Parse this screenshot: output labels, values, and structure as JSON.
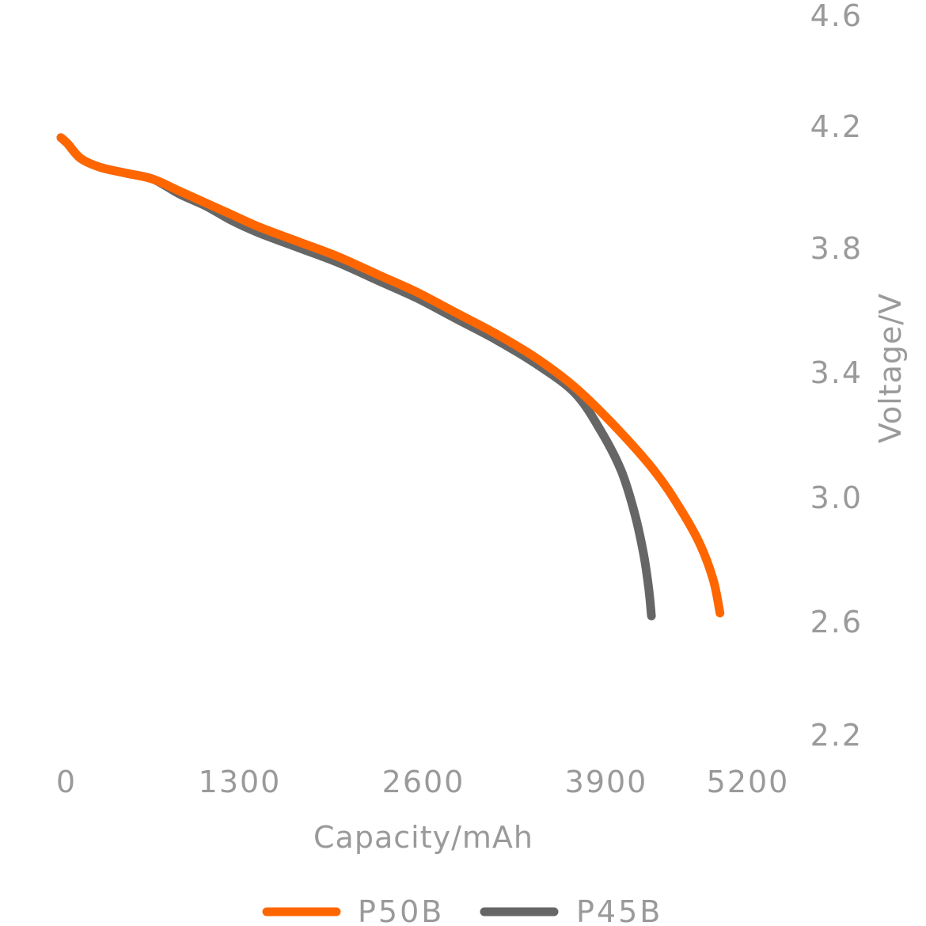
{
  "chart_data": {
    "type": "line",
    "title": "",
    "xlabel": "Capacity/mAh",
    "ylabel": "Voltage/V",
    "xlim": [
      0,
      5200
    ],
    "ylim": [
      2.2,
      4.6
    ],
    "x_ticks": [
      "0",
      "1300",
      "2600",
      "3900",
      "5200"
    ],
    "y_ticks": [
      "4.6",
      "4.2",
      "3.8",
      "3.4",
      "3.0",
      "2.6",
      "2.2"
    ],
    "y_axis_side": "right",
    "grid": false,
    "legend_position": "bottom",
    "series": [
      {
        "name": "P50B",
        "color": "#ff6600",
        "x": [
          0,
          50,
          150,
          300,
          500,
          700,
          900,
          1100,
          1300,
          1500,
          1800,
          2100,
          2400,
          2700,
          3000,
          3300,
          3600,
          3900,
          4200,
          4500,
          4700,
          4850,
          4950,
          5000
        ],
        "y": [
          4.19,
          4.17,
          4.12,
          4.09,
          4.07,
          4.05,
          4.01,
          3.97,
          3.93,
          3.89,
          3.84,
          3.79,
          3.73,
          3.67,
          3.6,
          3.53,
          3.45,
          3.35,
          3.22,
          3.07,
          2.94,
          2.82,
          2.7,
          2.59
        ]
      },
      {
        "name": "P45B",
        "color": "#666666",
        "x": [
          0,
          50,
          150,
          300,
          500,
          700,
          900,
          1100,
          1300,
          1500,
          1800,
          2100,
          2400,
          2700,
          3000,
          3300,
          3600,
          3900,
          4100,
          4250,
          4350,
          4420,
          4460,
          4480
        ],
        "y": [
          4.19,
          4.17,
          4.12,
          4.09,
          4.07,
          4.05,
          4.0,
          3.96,
          3.91,
          3.87,
          3.82,
          3.77,
          3.71,
          3.65,
          3.58,
          3.51,
          3.43,
          3.33,
          3.2,
          3.07,
          2.93,
          2.79,
          2.67,
          2.58
        ]
      }
    ]
  }
}
